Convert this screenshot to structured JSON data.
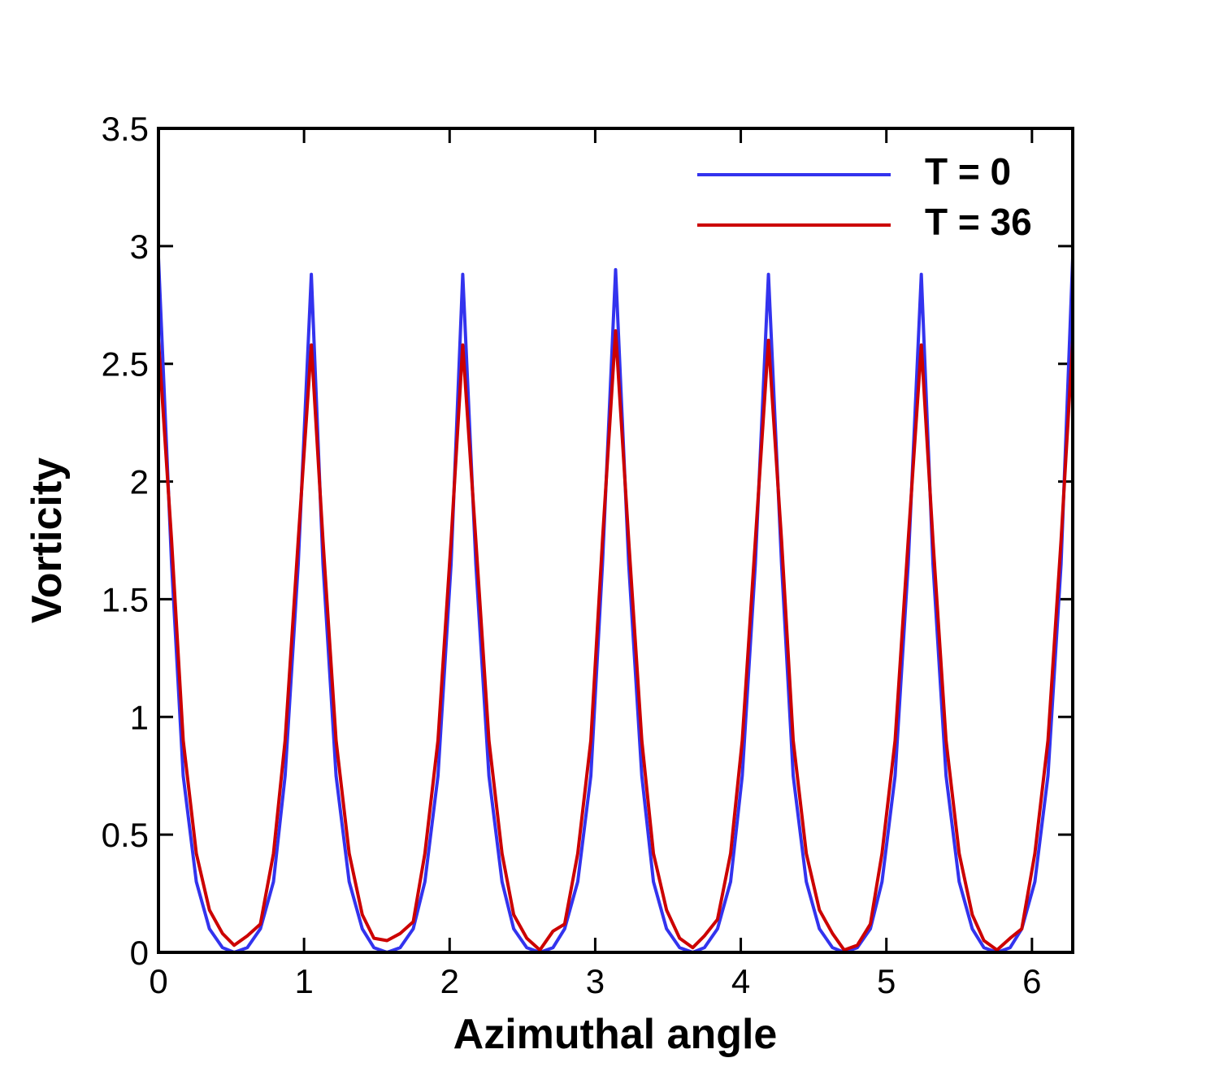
{
  "chart_data": {
    "type": "line",
    "x_label": "Azimuthal angle",
    "y_label": "Vorticity",
    "x": [
      0,
      0.09,
      0.17,
      0.26,
      0.35,
      0.44,
      0.52,
      0.61,
      0.7,
      0.79,
      0.87,
      0.96,
      1.05,
      1.13,
      1.22,
      1.31,
      1.4,
      1.48,
      1.57,
      1.66,
      1.75,
      1.83,
      1.92,
      2.01,
      2.09,
      2.18,
      2.27,
      2.36,
      2.44,
      2.53,
      2.62,
      2.71,
      2.79,
      2.88,
      2.97,
      3.05,
      3.14,
      3.23,
      3.32,
      3.4,
      3.49,
      3.58,
      3.67,
      3.75,
      3.84,
      3.93,
      4.01,
      4.1,
      4.19,
      4.28,
      4.36,
      4.45,
      4.54,
      4.63,
      4.71,
      4.8,
      4.89,
      4.97,
      5.06,
      5.15,
      5.24,
      5.32,
      5.41,
      5.5,
      5.59,
      5.67,
      5.76,
      5.85,
      5.93,
      6.02,
      6.11,
      6.2,
      6.28
    ],
    "series": [
      {
        "name": "T = 0",
        "color": "#3333ee",
        "values": [
          2.95,
          1.65,
          0.75,
          0.3,
          0.1,
          0.02,
          0,
          0.02,
          0.1,
          0.3,
          0.75,
          1.65,
          2.88,
          1.65,
          0.75,
          0.3,
          0.1,
          0.02,
          0,
          0.02,
          0.1,
          0.3,
          0.75,
          1.65,
          2.88,
          1.65,
          0.75,
          0.3,
          0.1,
          0.02,
          0,
          0.02,
          0.1,
          0.3,
          0.75,
          1.65,
          2.9,
          1.65,
          0.75,
          0.3,
          0.1,
          0.02,
          0,
          0.02,
          0.1,
          0.3,
          0.75,
          1.65,
          2.88,
          1.65,
          0.75,
          0.3,
          0.1,
          0.02,
          0,
          0.02,
          0.1,
          0.3,
          0.75,
          1.65,
          2.88,
          1.65,
          0.75,
          0.3,
          0.1,
          0.02,
          0,
          0.02,
          0.1,
          0.3,
          0.75,
          1.65,
          2.95
        ]
      },
      {
        "name": "T = 36",
        "color": "#cc0000",
        "values": [
          2.6,
          1.75,
          0.9,
          0.42,
          0.18,
          0.08,
          0.03,
          0.07,
          0.12,
          0.42,
          0.9,
          1.75,
          2.58,
          1.75,
          0.9,
          0.42,
          0.16,
          0.06,
          0.05,
          0.08,
          0.13,
          0.42,
          0.9,
          1.75,
          2.58,
          1.75,
          0.9,
          0.42,
          0.16,
          0.06,
          0.01,
          0.09,
          0.12,
          0.42,
          0.9,
          1.75,
          2.64,
          1.75,
          0.9,
          0.42,
          0.18,
          0.06,
          0.02,
          0.07,
          0.14,
          0.42,
          0.9,
          1.75,
          2.6,
          1.75,
          0.9,
          0.42,
          0.18,
          0.08,
          0.01,
          0.03,
          0.12,
          0.42,
          0.9,
          1.75,
          2.58,
          1.75,
          0.9,
          0.42,
          0.16,
          0.05,
          0.01,
          0.06,
          0.1,
          0.42,
          0.9,
          1.75,
          2.6
        ]
      }
    ],
    "xlim": [
      0,
      6.28
    ],
    "ylim": [
      0,
      3.5
    ],
    "xticks": [
      0,
      1,
      2,
      3,
      4,
      5,
      6
    ],
    "yticks": [
      0,
      0.5,
      1,
      1.5,
      2,
      2.5,
      3,
      3.5
    ],
    "legend": "top-right"
  }
}
